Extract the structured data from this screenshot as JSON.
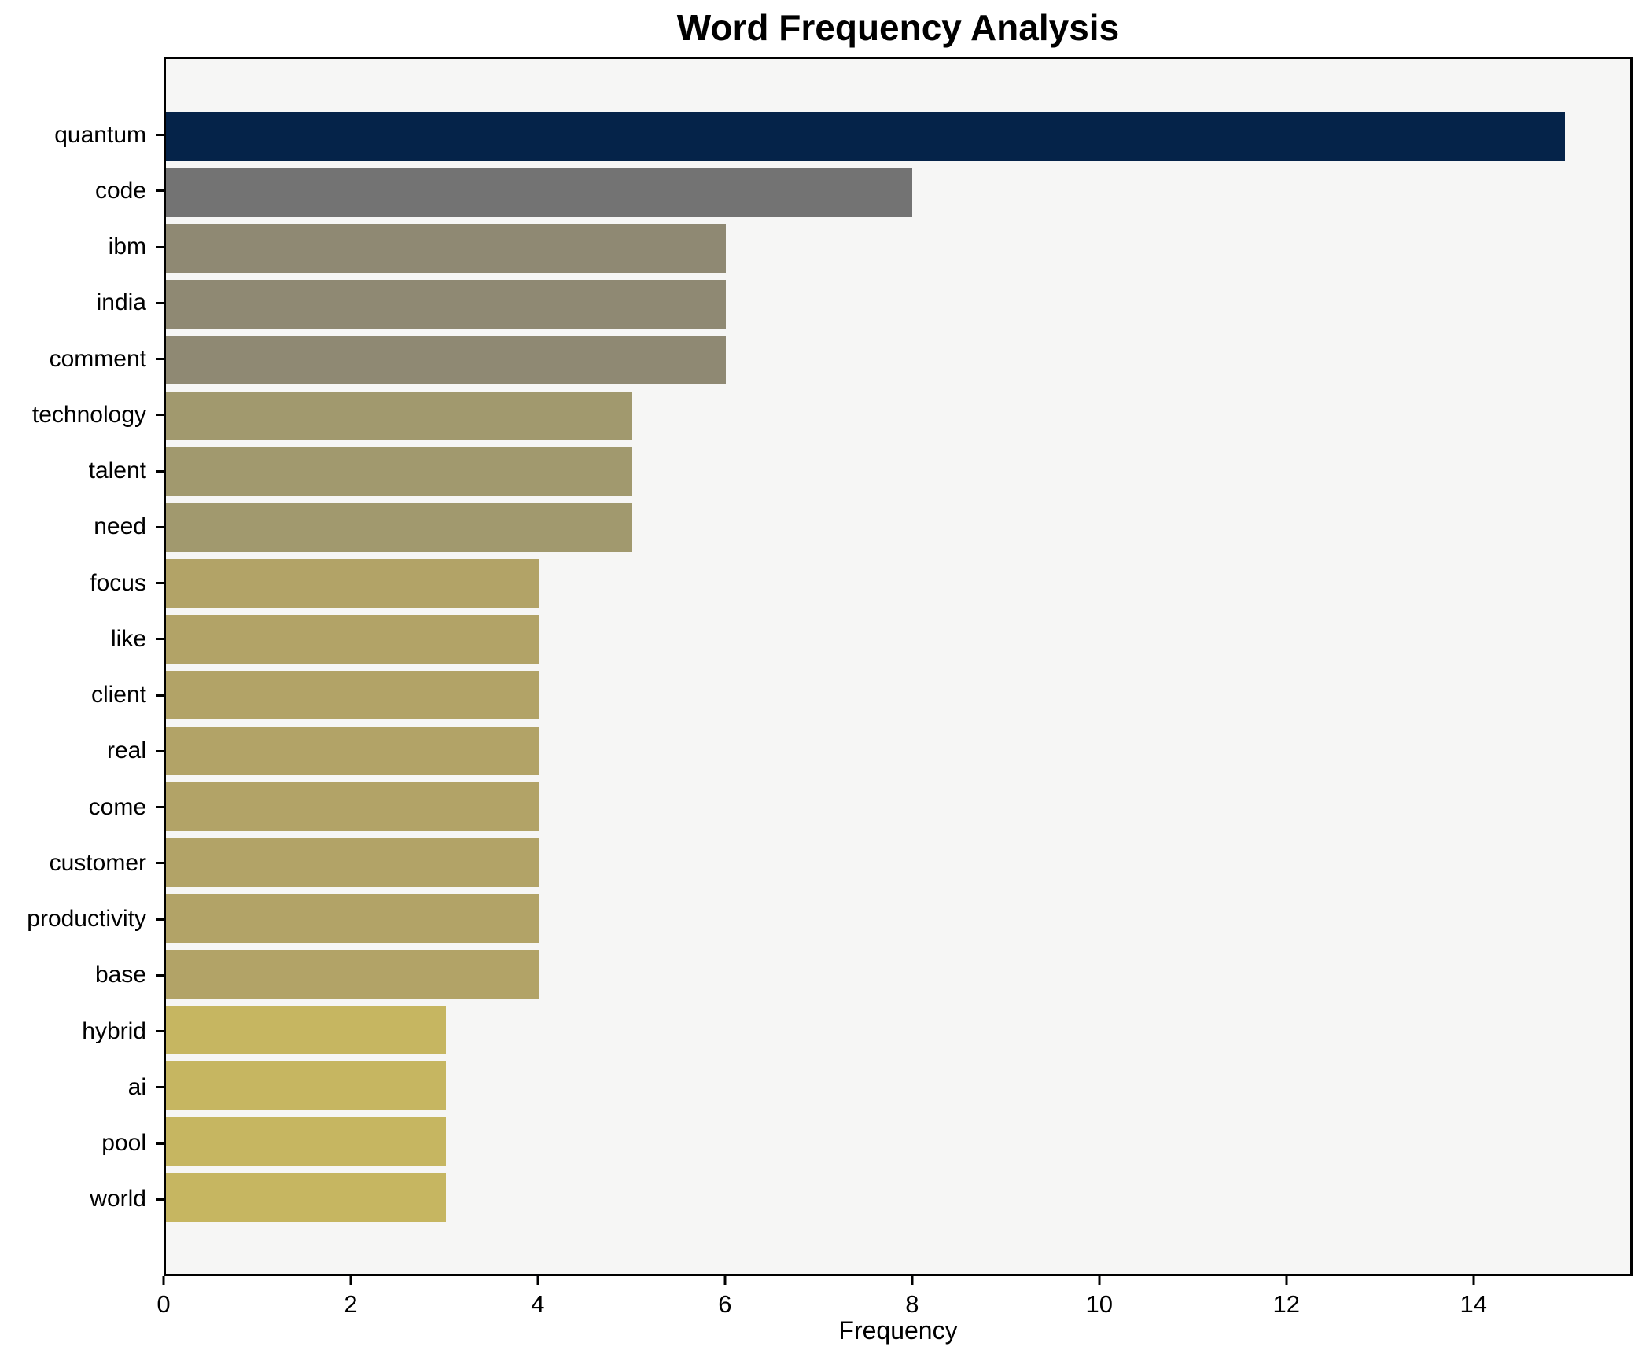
{
  "chart": {
    "title": "Word Frequency Analysis",
    "xlabel": "Frequency"
  },
  "chart_data": {
    "type": "bar",
    "orientation": "horizontal",
    "title": "Word Frequency Analysis",
    "xlabel": "Frequency",
    "ylabel": "",
    "categories": [
      "quantum",
      "code",
      "ibm",
      "india",
      "comment",
      "technology",
      "talent",
      "need",
      "focus",
      "like",
      "client",
      "real",
      "come",
      "customer",
      "productivity",
      "base",
      "hybrid",
      "ai",
      "pool",
      "world"
    ],
    "values": [
      15,
      8,
      6,
      6,
      6,
      5,
      5,
      5,
      4,
      4,
      4,
      4,
      4,
      4,
      4,
      4,
      3,
      3,
      3,
      3
    ],
    "bar_colors": [
      "#052349",
      "#737373",
      "#8f8973",
      "#8f8973",
      "#8f8973",
      "#a1996e",
      "#a1996e",
      "#a1996e",
      "#b2a367",
      "#b2a367",
      "#b2a367",
      "#b2a367",
      "#b2a367",
      "#b2a367",
      "#b2a367",
      "#b2a367",
      "#c6b661",
      "#c6b661",
      "#c6b661",
      "#c6b661"
    ],
    "xlim": [
      0,
      15.7
    ],
    "xticks": [
      0,
      2,
      4,
      6,
      8,
      10,
      12,
      14
    ],
    "grid": false,
    "legend": false,
    "plot_background": "#f6f6f5",
    "figure_background": "#ffffff",
    "spine_color": "#000000"
  }
}
